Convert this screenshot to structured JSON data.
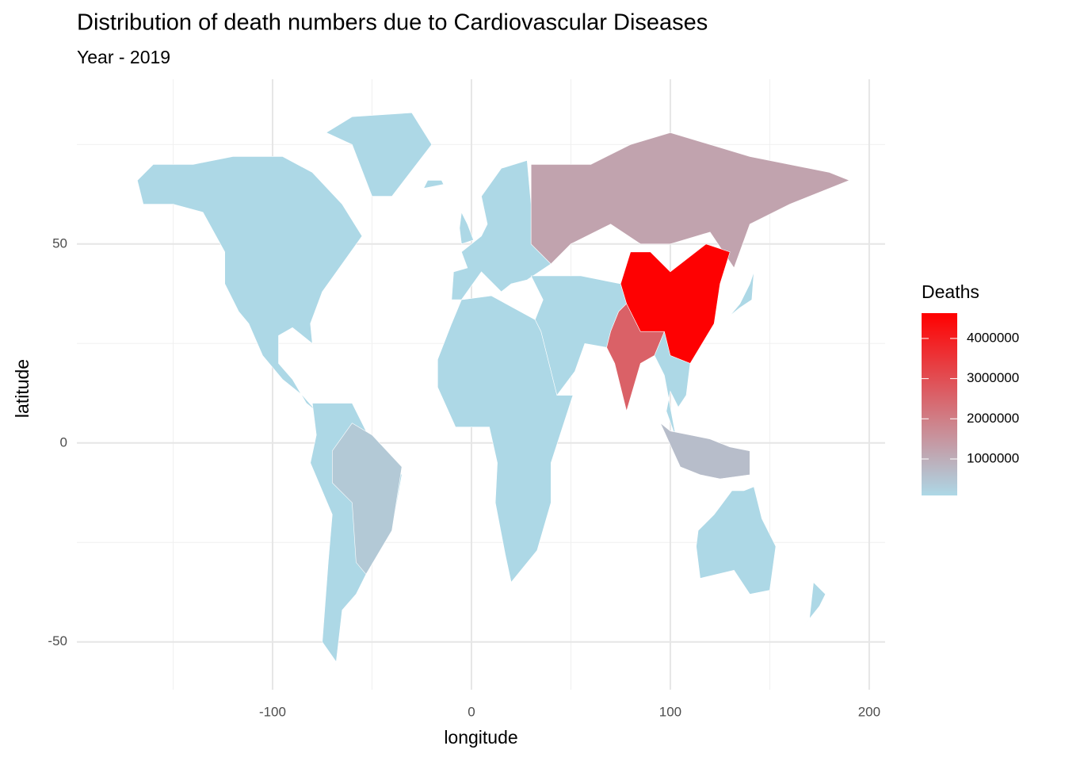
{
  "chart_data": {
    "type": "map",
    "title": "Distribution of death numbers due to Cardiovascular Diseases",
    "subtitle": "Year - 2019",
    "x_label": "longitude",
    "y_label": "latitude",
    "xlim": [
      -198.4,
      208
    ],
    "xticks": [
      -100,
      0,
      100,
      200
    ],
    "ylim": [
      -62,
      91.4
    ],
    "yticks": [
      -50,
      0,
      50
    ],
    "grid": true,
    "legend": {
      "title": "Deaths",
      "limits": [
        92000,
        4630000
      ],
      "ticks": [
        1000000,
        2000000,
        3000000,
        4000000
      ],
      "colors": [
        "#add8e6",
        "#ff0000"
      ]
    },
    "values": [
      4600000,
      2600000,
      1200000,
      400000,
      650000,
      100000
    ]
  }
}
